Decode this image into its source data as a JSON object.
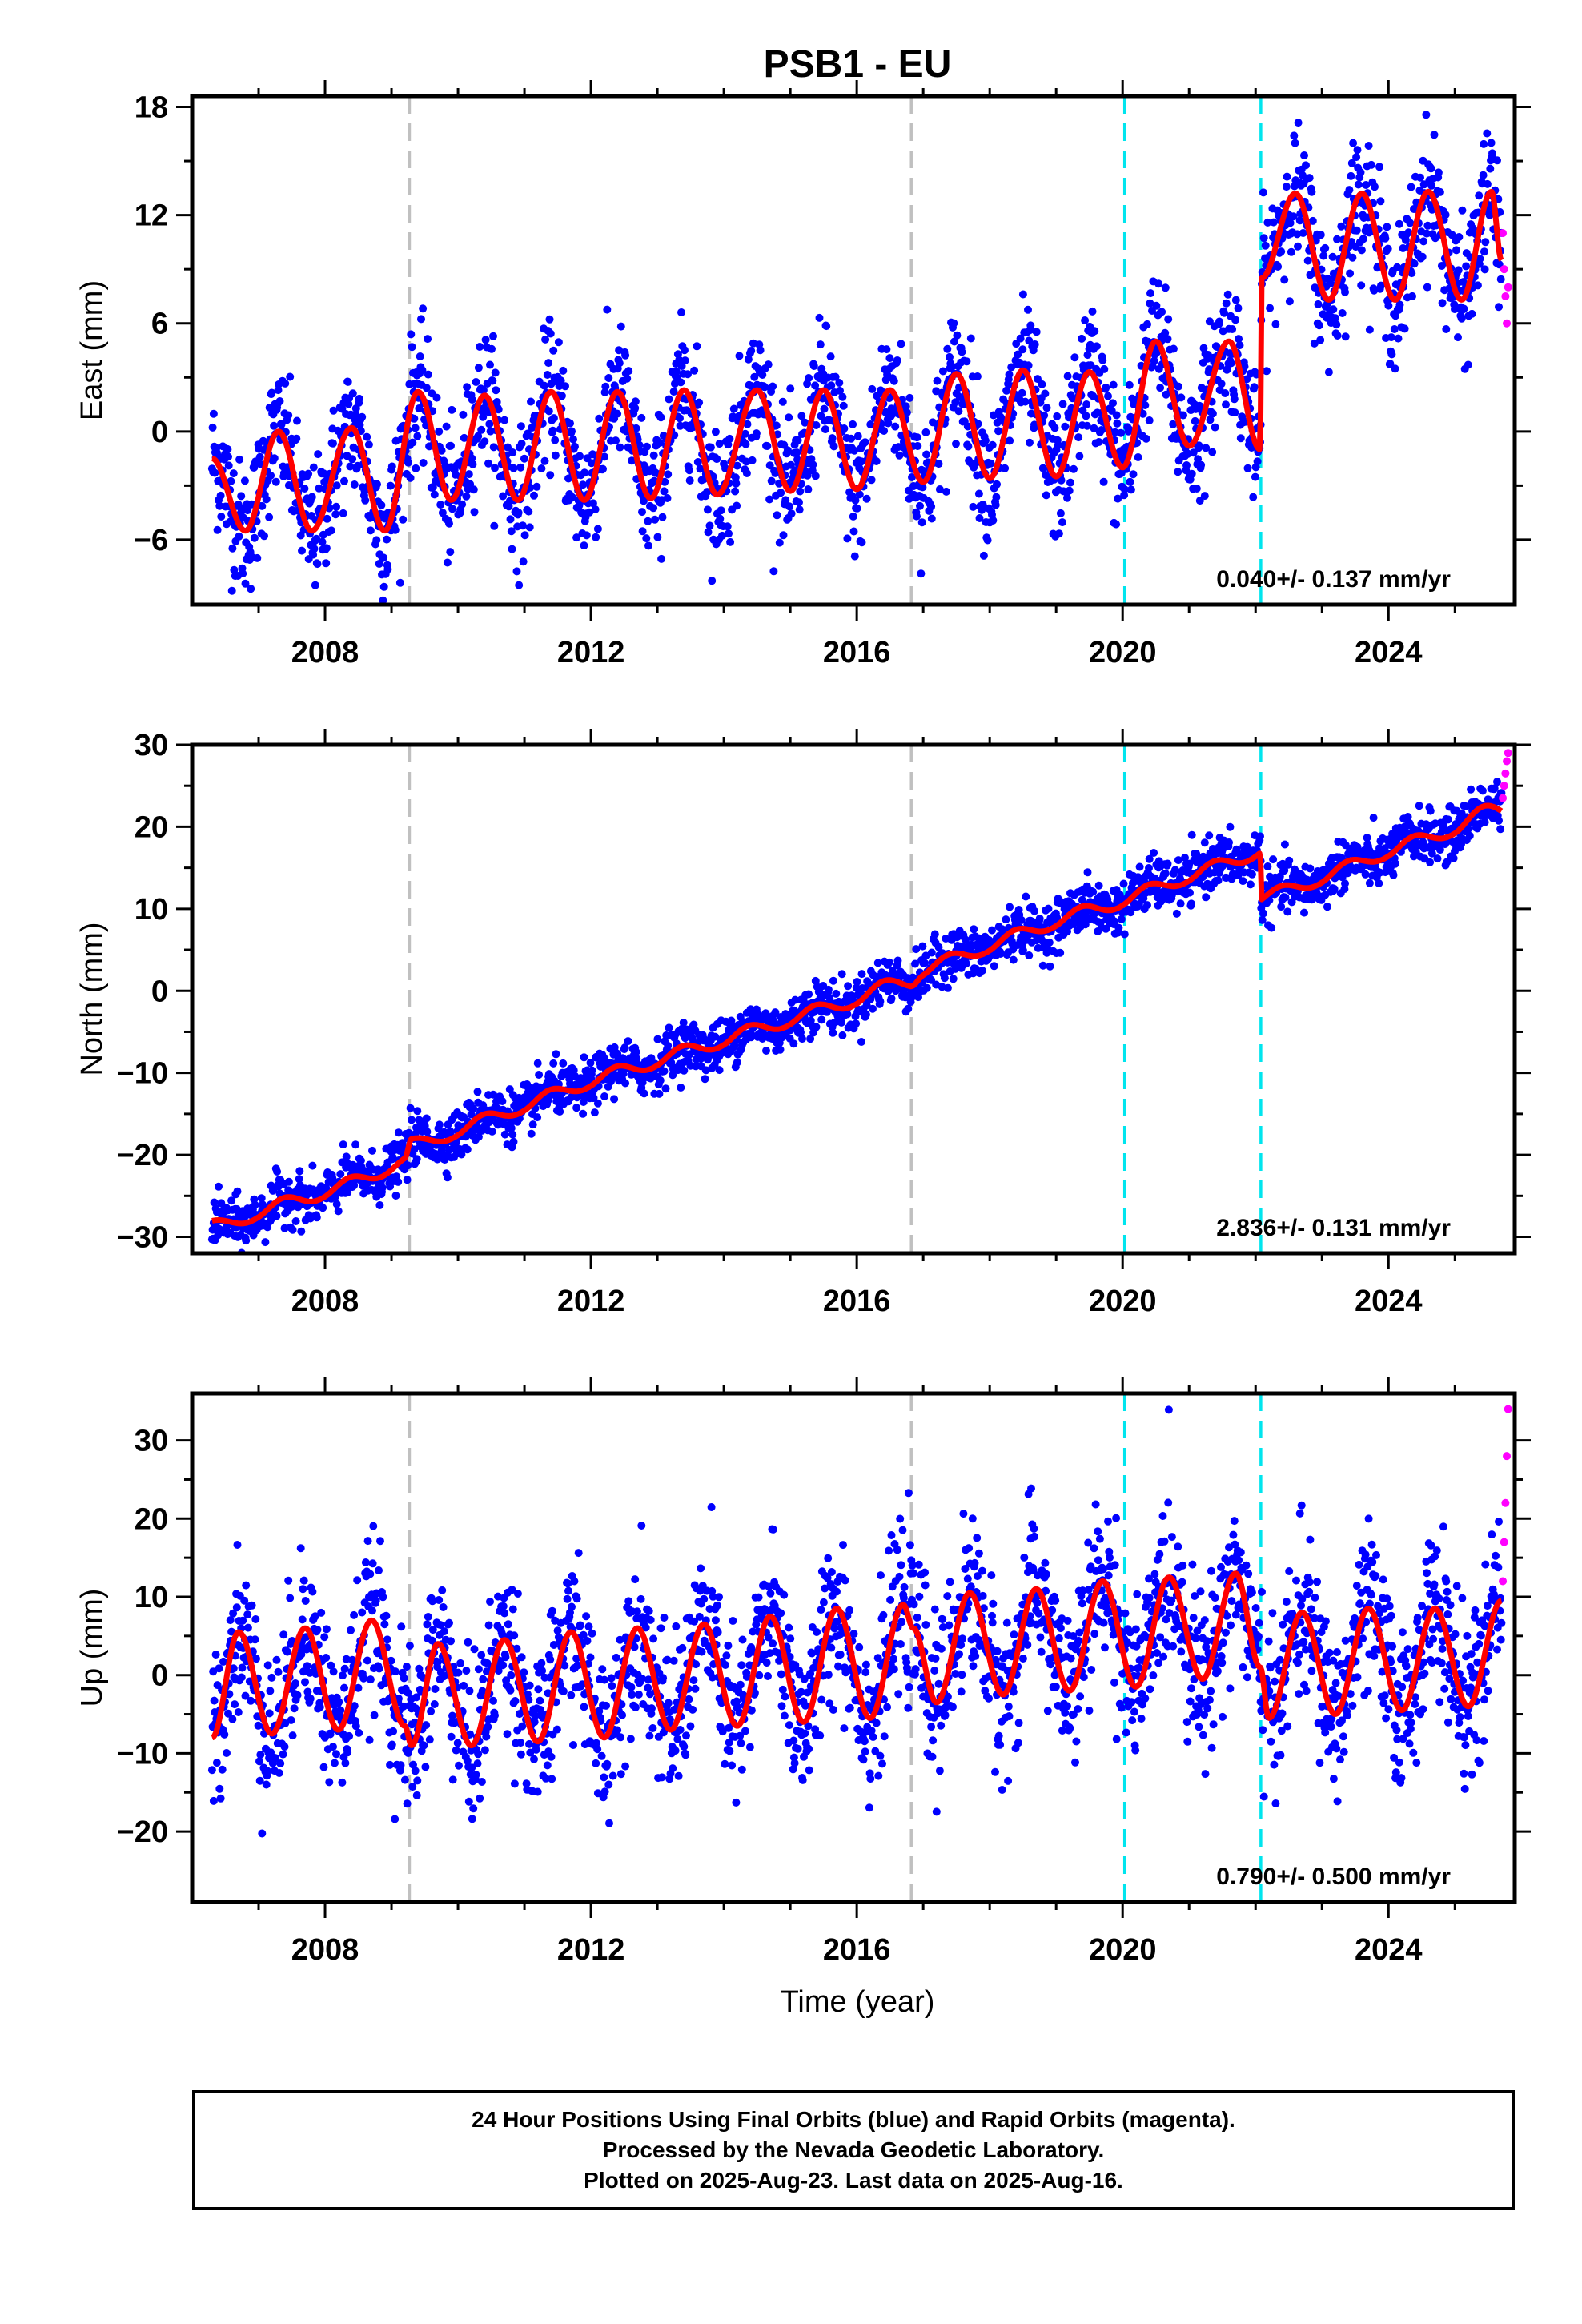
{
  "title": "PSB1 - EU",
  "xlabel": "Time (year)",
  "colors": {
    "final_orbits": "#0000ff",
    "rapid_orbits": "#ff00ff",
    "model": "#ff0000",
    "marker_grey": "#c0c0c0",
    "marker_cyan": "#00e5ee"
  },
  "footer": {
    "line1": "24 Hour Positions Using Final Orbits (blue) and Rapid Orbits (magenta).",
    "line2": "Processed by the Nevada Geodetic Laboratory.",
    "line3": "Plotted on 2025-Aug-23. Last data on 2025-Aug-16."
  },
  "chart_data": [
    {
      "type": "scatter",
      "ylabel": "East (mm)",
      "xlim": [
        2006.0,
        2025.9
      ],
      "ylim": [
        -9.6,
        18.6
      ],
      "xticks": [
        "2008",
        "2012",
        "2016",
        "2020",
        "2024"
      ],
      "yticks": [
        "18",
        "12",
        "6",
        "0",
        "-6"
      ],
      "rate_text": "0.040+/- 0.137 mm/yr",
      "steps_grey": [
        2009.27,
        2016.82
      ],
      "steps_cyan": [
        2020.03,
        2022.08
      ],
      "model": [
        {
          "x": 2006.3,
          "y": -1.5
        },
        {
          "x": 2006.8,
          "y": -5.5
        },
        {
          "x": 2007.3,
          "y": 0.0
        },
        {
          "x": 2007.8,
          "y": -5.5
        },
        {
          "x": 2008.4,
          "y": 0.2
        },
        {
          "x": 2008.9,
          "y": -5.5
        },
        {
          "x": 2009.4,
          "y": 2.2
        },
        {
          "x": 2009.9,
          "y": -3.8
        },
        {
          "x": 2010.4,
          "y": 2.0
        },
        {
          "x": 2010.9,
          "y": -3.8
        },
        {
          "x": 2011.4,
          "y": 2.2
        },
        {
          "x": 2011.9,
          "y": -3.8
        },
        {
          "x": 2012.4,
          "y": 2.2
        },
        {
          "x": 2012.9,
          "y": -3.7
        },
        {
          "x": 2013.4,
          "y": 2.3
        },
        {
          "x": 2013.9,
          "y": -3.5
        },
        {
          "x": 2014.5,
          "y": 2.3
        },
        {
          "x": 2015.0,
          "y": -3.3
        },
        {
          "x": 2015.5,
          "y": 2.3
        },
        {
          "x": 2016.0,
          "y": -3.2
        },
        {
          "x": 2016.5,
          "y": 2.3
        },
        {
          "x": 2017.0,
          "y": -2.8
        },
        {
          "x": 2017.5,
          "y": 3.2
        },
        {
          "x": 2018.0,
          "y": -2.6
        },
        {
          "x": 2018.5,
          "y": 3.4
        },
        {
          "x": 2019.0,
          "y": -2.5
        },
        {
          "x": 2019.5,
          "y": 3.3
        },
        {
          "x": 2020.0,
          "y": -2.0
        },
        {
          "x": 2020.5,
          "y": 5.0
        },
        {
          "x": 2021.0,
          "y": -0.8
        },
        {
          "x": 2021.6,
          "y": 5.0
        },
        {
          "x": 2022.07,
          "y": -1.0
        },
        {
          "x": 2022.09,
          "y": 8.5
        },
        {
          "x": 2022.6,
          "y": 13.2
        },
        {
          "x": 2023.1,
          "y": 7.3
        },
        {
          "x": 2023.6,
          "y": 13.2
        },
        {
          "x": 2024.1,
          "y": 7.3
        },
        {
          "x": 2024.6,
          "y": 13.3
        },
        {
          "x": 2025.1,
          "y": 7.3
        },
        {
          "x": 2025.55,
          "y": 13.3
        },
        {
          "x": 2025.7,
          "y": 9.5
        }
      ],
      "noise_sd": 1.8,
      "rapid": [
        {
          "x": 2025.72,
          "y": 11.0
        },
        {
          "x": 2025.74,
          "y": 9.0
        },
        {
          "x": 2025.76,
          "y": 7.5
        },
        {
          "x": 2025.78,
          "y": 6.0
        },
        {
          "x": 2025.8,
          "y": 8.0
        }
      ]
    },
    {
      "type": "scatter",
      "ylabel": "North (mm)",
      "xlim": [
        2006.0,
        2025.9
      ],
      "ylim": [
        -32.0,
        30.0
      ],
      "xticks": [
        "2008",
        "2012",
        "2016",
        "2020",
        "2024"
      ],
      "yticks": [
        "30",
        "20",
        "10",
        "0",
        "-10",
        "-20",
        "-30"
      ],
      "rate_text": "2.836+/- 0.131 mm/yr",
      "steps_grey": [
        2009.27,
        2016.82
      ],
      "steps_cyan": [
        2020.03,
        2022.08
      ],
      "model": [
        {
          "x": 2006.3,
          "y": -29.0
        },
        {
          "x": 2007.0,
          "y": -27.0
        },
        {
          "x": 2008.0,
          "y": -24.5
        },
        {
          "x": 2009.2,
          "y": -21.0
        },
        {
          "x": 2009.3,
          "y": -19.0
        },
        {
          "x": 2010.0,
          "y": -17.0
        },
        {
          "x": 2011.0,
          "y": -14.0
        },
        {
          "x": 2012.0,
          "y": -11.0
        },
        {
          "x": 2013.0,
          "y": -8.5
        },
        {
          "x": 2014.0,
          "y": -6.0
        },
        {
          "x": 2015.0,
          "y": -3.5
        },
        {
          "x": 2016.0,
          "y": -1.0
        },
        {
          "x": 2016.8,
          "y": 1.5
        },
        {
          "x": 2017.0,
          "y": 2.5
        },
        {
          "x": 2018.0,
          "y": 5.5
        },
        {
          "x": 2019.0,
          "y": 8.5
        },
        {
          "x": 2020.0,
          "y": 11.0
        },
        {
          "x": 2021.0,
          "y": 14.0
        },
        {
          "x": 2022.07,
          "y": 17.0
        },
        {
          "x": 2022.09,
          "y": 11.2
        },
        {
          "x": 2023.0,
          "y": 13.8
        },
        {
          "x": 2024.0,
          "y": 17.0
        },
        {
          "x": 2025.0,
          "y": 19.8
        },
        {
          "x": 2025.7,
          "y": 22.5
        }
      ],
      "seasonal_amp": 1.0,
      "noise_sd": 1.5,
      "rapid": [
        {
          "x": 2025.72,
          "y": 23.5
        },
        {
          "x": 2025.74,
          "y": 25.0
        },
        {
          "x": 2025.76,
          "y": 26.5
        },
        {
          "x": 2025.78,
          "y": 28.0
        },
        {
          "x": 2025.8,
          "y": 29.0
        }
      ]
    },
    {
      "type": "scatter",
      "ylabel": "Up (mm)",
      "xlim": [
        2006.0,
        2025.9
      ],
      "ylim": [
        -29.0,
        36.0
      ],
      "xticks": [
        "2008",
        "2012",
        "2016",
        "2020",
        "2024"
      ],
      "yticks": [
        "30",
        "20",
        "10",
        "0",
        "-10",
        "-20"
      ],
      "rate_text": "0.790+/- 0.500 mm/yr",
      "steps_grey": [
        2009.27,
        2016.82
      ],
      "steps_cyan": [
        2020.03,
        2022.08
      ],
      "model": [
        {
          "x": 2006.3,
          "y": -8.0
        },
        {
          "x": 2006.7,
          "y": 5.5
        },
        {
          "x": 2007.2,
          "y": -7.5
        },
        {
          "x": 2007.7,
          "y": 6.0
        },
        {
          "x": 2008.2,
          "y": -7.0
        },
        {
          "x": 2008.7,
          "y": 7.0
        },
        {
          "x": 2009.2,
          "y": -6.5
        },
        {
          "x": 2009.3,
          "y": -9.0
        },
        {
          "x": 2009.7,
          "y": 4.0
        },
        {
          "x": 2010.2,
          "y": -9.0
        },
        {
          "x": 2010.7,
          "y": 4.5
        },
        {
          "x": 2011.2,
          "y": -8.5
        },
        {
          "x": 2011.7,
          "y": 5.5
        },
        {
          "x": 2012.2,
          "y": -8.0
        },
        {
          "x": 2012.7,
          "y": 6.0
        },
        {
          "x": 2013.2,
          "y": -7.0
        },
        {
          "x": 2013.7,
          "y": 6.5
        },
        {
          "x": 2014.2,
          "y": -6.5
        },
        {
          "x": 2014.7,
          "y": 7.5
        },
        {
          "x": 2015.2,
          "y": -6.0
        },
        {
          "x": 2015.7,
          "y": 8.5
        },
        {
          "x": 2016.2,
          "y": -5.5
        },
        {
          "x": 2016.7,
          "y": 9.0
        },
        {
          "x": 2016.85,
          "y": 6.0
        },
        {
          "x": 2017.2,
          "y": -3.5
        },
        {
          "x": 2017.7,
          "y": 10.5
        },
        {
          "x": 2018.2,
          "y": -2.5
        },
        {
          "x": 2018.7,
          "y": 11.0
        },
        {
          "x": 2019.2,
          "y": -2.0
        },
        {
          "x": 2019.7,
          "y": 12.0
        },
        {
          "x": 2020.2,
          "y": -1.5
        },
        {
          "x": 2020.7,
          "y": 12.5
        },
        {
          "x": 2021.2,
          "y": -0.5
        },
        {
          "x": 2021.7,
          "y": 13.0
        },
        {
          "x": 2022.07,
          "y": 1.0
        },
        {
          "x": 2022.2,
          "y": -5.5
        },
        {
          "x": 2022.7,
          "y": 8.0
        },
        {
          "x": 2023.2,
          "y": -5.0
        },
        {
          "x": 2023.7,
          "y": 8.5
        },
        {
          "x": 2024.2,
          "y": -4.5
        },
        {
          "x": 2024.7,
          "y": 8.5
        },
        {
          "x": 2025.2,
          "y": -4.0
        },
        {
          "x": 2025.7,
          "y": 9.5
        }
      ],
      "noise_sd": 5.0,
      "rapid": [
        {
          "x": 2025.72,
          "y": 12.0
        },
        {
          "x": 2025.74,
          "y": 17.0
        },
        {
          "x": 2025.76,
          "y": 22.0
        },
        {
          "x": 2025.78,
          "y": 28.0
        },
        {
          "x": 2025.8,
          "y": 34.0
        }
      ]
    }
  ]
}
